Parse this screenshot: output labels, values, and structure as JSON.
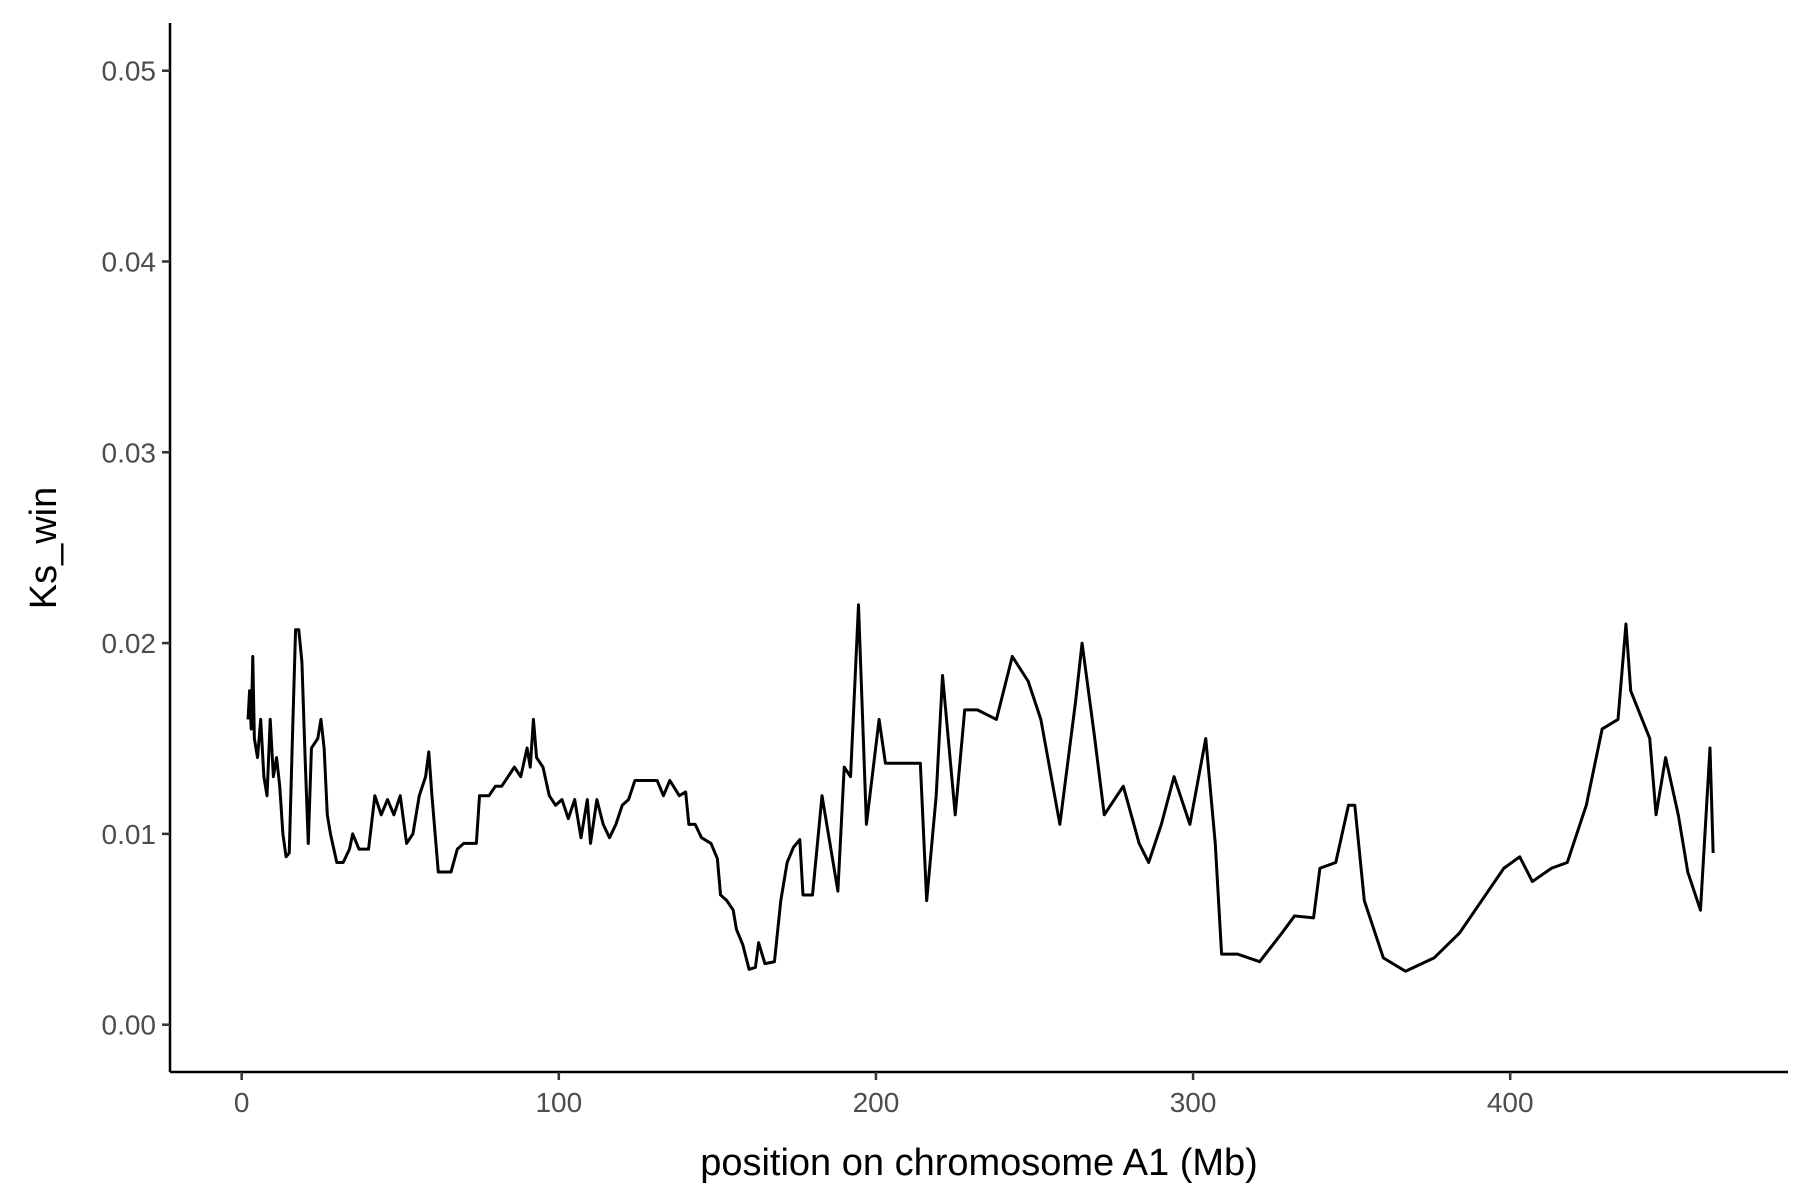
{
  "chart_data": {
    "type": "line",
    "x_label": "position on chromosome A1 (Mb)",
    "y_label": "Ks_win",
    "color": "#000000",
    "xlim": [
      -22.6,
      487.6
    ],
    "ylim": [
      -0.00248,
      0.0525
    ],
    "xticks": [
      0,
      100,
      200,
      300,
      400
    ],
    "yticks": [
      {
        "value": 0,
        "label": "0.00"
      },
      0.01,
      0.02,
      0.03,
      0.04,
      0.05
    ],
    "grid": false,
    "x": [
      2,
      2.5,
      3,
      3.5,
      4,
      5,
      6,
      7,
      8,
      9,
      10,
      11,
      12,
      13,
      14,
      15,
      16,
      17,
      18,
      19,
      20,
      21,
      22,
      24,
      25,
      26,
      27,
      28,
      30,
      32,
      34,
      35,
      37,
      40,
      42,
      44,
      46,
      48,
      50,
      52,
      54,
      56,
      58,
      59,
      60,
      62,
      66,
      68,
      70,
      74,
      75,
      78,
      80,
      82,
      84,
      86,
      88,
      90,
      91,
      92,
      93,
      95,
      97,
      99,
      101,
      103,
      105,
      107,
      109,
      110,
      112,
      114,
      116,
      118,
      120,
      122,
      124,
      128,
      131,
      133,
      135,
      138,
      140,
      141,
      143,
      145,
      148,
      150,
      151,
      153,
      155,
      156,
      158,
      160,
      162,
      163,
      165,
      168,
      170,
      172,
      174,
      176,
      177,
      180,
      183,
      188,
      190,
      192,
      194.5,
      197,
      201,
      203,
      214,
      216,
      219,
      221,
      225,
      228,
      232,
      238,
      243,
      248,
      252,
      258,
      263,
      265,
      269,
      272,
      278,
      283,
      286,
      290,
      294,
      299,
      304,
      307,
      309,
      314,
      321,
      328,
      332,
      338,
      340,
      345,
      349,
      351,
      354,
      360,
      367,
      376,
      384,
      391,
      398,
      403,
      407,
      413,
      418,
      424,
      429,
      434,
      436.5,
      438,
      444,
      446,
      449,
      453,
      456,
      460,
      463,
      464
    ],
    "values": [
      0.016,
      0.0175,
      0.0155,
      0.0193,
      0.015,
      0.014,
      0.016,
      0.013,
      0.012,
      0.016,
      0.013,
      0.014,
      0.0125,
      0.01,
      0.0088,
      0.009,
      0.015,
      0.0207,
      0.0207,
      0.019,
      0.014,
      0.0095,
      0.0145,
      0.015,
      0.016,
      0.0145,
      0.011,
      0.01,
      0.0085,
      0.0085,
      0.0092,
      0.01,
      0.0092,
      0.0092,
      0.012,
      0.011,
      0.0118,
      0.011,
      0.012,
      0.0095,
      0.01,
      0.012,
      0.013,
      0.0143,
      0.012,
      0.008,
      0.008,
      0.0092,
      0.0095,
      0.0095,
      0.012,
      0.012,
      0.0125,
      0.0125,
      0.013,
      0.0135,
      0.013,
      0.0145,
      0.0135,
      0.016,
      0.014,
      0.0135,
      0.012,
      0.0115,
      0.0118,
      0.0108,
      0.0118,
      0.0098,
      0.0118,
      0.0095,
      0.0118,
      0.0105,
      0.0098,
      0.0105,
      0.0115,
      0.0118,
      0.0128,
      0.0128,
      0.0128,
      0.012,
      0.0128,
      0.012,
      0.0122,
      0.0105,
      0.0105,
      0.0098,
      0.0095,
      0.0087,
      0.0068,
      0.0065,
      0.006,
      0.005,
      0.0042,
      0.0029,
      0.003,
      0.0043,
      0.0032,
      0.0033,
      0.0065,
      0.0085,
      0.0093,
      0.0097,
      0.0068,
      0.0068,
      0.012,
      0.007,
      0.0135,
      0.013,
      0.022,
      0.0105,
      0.016,
      0.0137,
      0.0137,
      0.0065,
      0.012,
      0.0183,
      0.011,
      0.0165,
      0.0165,
      0.016,
      0.0193,
      0.018,
      0.016,
      0.0105,
      0.017,
      0.02,
      0.015,
      0.011,
      0.0125,
      0.0095,
      0.0085,
      0.0105,
      0.013,
      0.0105,
      0.015,
      0.0095,
      0.0037,
      0.0037,
      0.0033,
      0.0048,
      0.0057,
      0.0056,
      0.0082,
      0.0085,
      0.0115,
      0.0115,
      0.0065,
      0.0035,
      0.0028,
      0.0035,
      0.0048,
      0.0065,
      0.0082,
      0.0088,
      0.0075,
      0.0082,
      0.0085,
      0.0115,
      0.0155,
      0.016,
      0.021,
      0.0175,
      0.015,
      0.011,
      0.014,
      0.011,
      0.008,
      0.006,
      0.0145,
      0.009
    ]
  }
}
